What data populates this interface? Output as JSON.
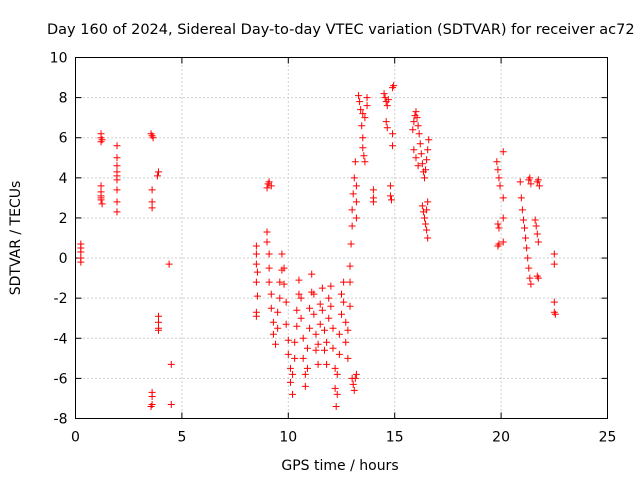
{
  "chart_data": {
    "type": "scatter",
    "title": "Day 160 of 2024, Sidereal Day-to-day VTEC variation (SDTVAR) for receiver ac72",
    "xlabel": "GPS time / hours",
    "ylabel": "SDTVAR / TECUs",
    "xlim": [
      0,
      25
    ],
    "ylim": [
      -8,
      10
    ],
    "xticks": [
      0,
      5,
      10,
      15,
      20,
      25
    ],
    "yticks": [
      -8,
      -6,
      -4,
      -2,
      0,
      2,
      4,
      6,
      8,
      10
    ],
    "grid": true,
    "series": [
      {
        "name": "SDTVAR",
        "color": "#ff0000",
        "marker": "plus",
        "points": [
          [
            0.25,
            0.7
          ],
          [
            0.25,
            0.5
          ],
          [
            0.25,
            0.3
          ],
          [
            0.25,
            0.0
          ],
          [
            0.25,
            -0.2
          ],
          [
            1.2,
            6.2
          ],
          [
            1.2,
            6.0
          ],
          [
            1.2,
            5.8
          ],
          [
            1.25,
            5.9
          ],
          [
            1.2,
            3.6
          ],
          [
            1.2,
            3.3
          ],
          [
            1.2,
            3.1
          ],
          [
            1.2,
            2.9
          ],
          [
            1.25,
            2.7
          ],
          [
            1.2,
            3.0
          ],
          [
            1.95,
            5.6
          ],
          [
            1.95,
            5.0
          ],
          [
            1.95,
            4.6
          ],
          [
            1.95,
            4.3
          ],
          [
            1.95,
            4.1
          ],
          [
            1.95,
            3.9
          ],
          [
            1.95,
            3.4
          ],
          [
            1.95,
            2.8
          ],
          [
            1.95,
            2.3
          ],
          [
            3.55,
            6.2
          ],
          [
            3.6,
            6.1
          ],
          [
            3.65,
            6.0
          ],
          [
            3.6,
            3.4
          ],
          [
            3.6,
            2.8
          ],
          [
            3.6,
            2.5
          ],
          [
            3.6,
            -6.7
          ],
          [
            3.6,
            -6.9
          ],
          [
            3.6,
            -7.3
          ],
          [
            3.55,
            -7.4
          ],
          [
            3.9,
            4.3
          ],
          [
            3.85,
            4.1
          ],
          [
            3.9,
            -2.9
          ],
          [
            3.9,
            -3.2
          ],
          [
            3.9,
            -3.5
          ],
          [
            3.9,
            -3.6
          ],
          [
            4.4,
            -0.3
          ],
          [
            4.5,
            -5.3
          ],
          [
            4.5,
            -7.3
          ],
          [
            8.5,
            0.6
          ],
          [
            8.5,
            0.2
          ],
          [
            8.5,
            -0.3
          ],
          [
            8.55,
            -0.7
          ],
          [
            8.5,
            -1.2
          ],
          [
            8.55,
            -1.9
          ],
          [
            8.5,
            -2.7
          ],
          [
            8.5,
            -2.9
          ],
          [
            9.0,
            3.5
          ],
          [
            9.05,
            3.7
          ],
          [
            9.1,
            3.8
          ],
          [
            9.2,
            3.6
          ],
          [
            9.0,
            1.3
          ],
          [
            9.0,
            0.8
          ],
          [
            9.1,
            0.2
          ],
          [
            9.1,
            -0.5
          ],
          [
            9.1,
            -1.2
          ],
          [
            9.2,
            -1.8
          ],
          [
            9.2,
            -2.5
          ],
          [
            9.3,
            -3.2
          ],
          [
            9.3,
            -3.8
          ],
          [
            9.4,
            -4.3
          ],
          [
            9.5,
            -3.5
          ],
          [
            9.5,
            -2.7
          ],
          [
            9.6,
            -2.0
          ],
          [
            9.6,
            -1.2
          ],
          [
            9.7,
            -0.6
          ],
          [
            9.7,
            0.2
          ],
          [
            9.8,
            -0.5
          ],
          [
            9.8,
            -1.3
          ],
          [
            9.9,
            -2.2
          ],
          [
            9.9,
            -3.3
          ],
          [
            10.0,
            -4.1
          ],
          [
            10.0,
            -4.8
          ],
          [
            10.1,
            -5.5
          ],
          [
            10.1,
            -6.2
          ],
          [
            10.2,
            -6.8
          ],
          [
            10.2,
            -5.8
          ],
          [
            10.3,
            -5.0
          ],
          [
            10.3,
            -4.2
          ],
          [
            10.4,
            -3.4
          ],
          [
            10.4,
            -2.6
          ],
          [
            10.5,
            -1.8
          ],
          [
            10.5,
            -1.1
          ],
          [
            10.6,
            -2.0
          ],
          [
            10.6,
            -3.0
          ],
          [
            10.7,
            -4.0
          ],
          [
            10.7,
            -5.0
          ],
          [
            10.8,
            -5.8
          ],
          [
            10.8,
            -6.4
          ],
          [
            10.9,
            -5.5
          ],
          [
            10.9,
            -4.5
          ],
          [
            11.0,
            -3.5
          ],
          [
            11.0,
            -2.5
          ],
          [
            11.1,
            -1.7
          ],
          [
            11.1,
            -0.8
          ],
          [
            11.2,
            -1.8
          ],
          [
            11.2,
            -2.8
          ],
          [
            11.3,
            -3.8
          ],
          [
            11.3,
            -4.6
          ],
          [
            11.4,
            -5.3
          ],
          [
            11.4,
            -4.3
          ],
          [
            11.5,
            -3.3
          ],
          [
            11.5,
            -2.3
          ],
          [
            11.6,
            -1.5
          ],
          [
            11.6,
            -2.6
          ],
          [
            11.7,
            -3.6
          ],
          [
            11.7,
            -4.6
          ],
          [
            11.8,
            -5.3
          ],
          [
            11.8,
            -4.2
          ],
          [
            11.9,
            -3.0
          ],
          [
            11.9,
            -2.0
          ],
          [
            12.0,
            -1.4
          ],
          [
            12.0,
            -2.4
          ],
          [
            12.1,
            -3.5
          ],
          [
            12.1,
            -4.5
          ],
          [
            12.2,
            -5.5
          ],
          [
            12.2,
            -6.5
          ],
          [
            12.25,
            -7.4
          ],
          [
            12.3,
            -6.8
          ],
          [
            12.3,
            -5.8
          ],
          [
            12.4,
            -4.8
          ],
          [
            12.4,
            -3.8
          ],
          [
            12.5,
            -2.8
          ],
          [
            12.5,
            -1.8
          ],
          [
            12.6,
            -1.2
          ],
          [
            12.6,
            -2.2
          ],
          [
            12.7,
            -3.2
          ],
          [
            12.7,
            -4.2
          ],
          [
            12.8,
            -5.0
          ],
          [
            12.8,
            -3.6
          ],
          [
            12.9,
            -2.4
          ],
          [
            12.9,
            -1.2
          ],
          [
            12.9,
            -0.4
          ],
          [
            12.95,
            0.7
          ],
          [
            13.0,
            1.6
          ],
          [
            13.0,
            2.4
          ],
          [
            13.05,
            3.2
          ],
          [
            13.1,
            4.0
          ],
          [
            13.15,
            4.8
          ],
          [
            13.2,
            3.6
          ],
          [
            13.2,
            2.8
          ],
          [
            13.2,
            2.0
          ],
          [
            13.0,
            -6.0
          ],
          [
            13.05,
            -6.3
          ],
          [
            13.1,
            -6.6
          ],
          [
            13.15,
            -6.0
          ],
          [
            13.2,
            -5.8
          ],
          [
            13.3,
            8.1
          ],
          [
            13.35,
            7.8
          ],
          [
            13.4,
            7.4
          ],
          [
            13.45,
            6.6
          ],
          [
            13.5,
            6.0
          ],
          [
            13.5,
            5.5
          ],
          [
            13.55,
            5.1
          ],
          [
            13.6,
            4.8
          ],
          [
            13.6,
            7.0
          ],
          [
            13.7,
            7.6
          ],
          [
            13.7,
            8.0
          ],
          [
            13.5,
            7.2
          ],
          [
            14.0,
            3.4
          ],
          [
            14.0,
            3.0
          ],
          [
            14.0,
            2.8
          ],
          [
            14.5,
            8.2
          ],
          [
            14.55,
            8.0
          ],
          [
            14.6,
            7.8
          ],
          [
            14.65,
            7.6
          ],
          [
            14.7,
            7.9
          ],
          [
            14.6,
            6.8
          ],
          [
            14.65,
            6.5
          ],
          [
            14.8,
            3.6
          ],
          [
            14.8,
            3.1
          ],
          [
            14.85,
            2.9
          ],
          [
            14.9,
            8.5
          ],
          [
            14.95,
            8.6
          ],
          [
            14.9,
            6.2
          ],
          [
            14.9,
            5.6
          ],
          [
            15.85,
            6.4
          ],
          [
            15.9,
            6.8
          ],
          [
            15.95,
            7.1
          ],
          [
            16.0,
            7.3
          ],
          [
            16.05,
            7.0
          ],
          [
            16.1,
            6.6
          ],
          [
            16.15,
            6.2
          ],
          [
            16.2,
            5.7
          ],
          [
            16.25,
            5.2
          ],
          [
            16.3,
            4.7
          ],
          [
            16.35,
            4.3
          ],
          [
            16.4,
            4.0
          ],
          [
            16.45,
            4.4
          ],
          [
            16.5,
            4.9
          ],
          [
            16.55,
            5.4
          ],
          [
            16.6,
            5.9
          ],
          [
            16.3,
            2.6
          ],
          [
            16.35,
            2.3
          ],
          [
            16.4,
            2.0
          ],
          [
            16.45,
            1.7
          ],
          [
            16.5,
            1.4
          ],
          [
            16.55,
            1.0
          ],
          [
            16.5,
            2.4
          ],
          [
            16.55,
            2.8
          ],
          [
            15.9,
            5.4
          ],
          [
            16.0,
            5.0
          ],
          [
            16.1,
            4.6
          ],
          [
            19.8,
            4.8
          ],
          [
            19.85,
            4.4
          ],
          [
            19.9,
            4.0
          ],
          [
            19.95,
            3.6
          ],
          [
            19.85,
            1.7
          ],
          [
            19.9,
            1.5
          ],
          [
            19.9,
            0.7
          ],
          [
            19.85,
            0.6
          ],
          [
            20.1,
            5.3
          ],
          [
            20.1,
            3.0
          ],
          [
            20.1,
            2.0
          ],
          [
            20.1,
            0.8
          ],
          [
            20.9,
            3.8
          ],
          [
            20.95,
            3.0
          ],
          [
            21.0,
            2.4
          ],
          [
            21.05,
            1.9
          ],
          [
            21.1,
            1.5
          ],
          [
            21.15,
            1.0
          ],
          [
            21.2,
            0.5
          ],
          [
            21.25,
            0.0
          ],
          [
            21.3,
            -0.5
          ],
          [
            21.35,
            -1.0
          ],
          [
            21.4,
            -1.3
          ],
          [
            21.3,
            3.9
          ],
          [
            21.35,
            4.0
          ],
          [
            21.4,
            3.7
          ],
          [
            21.6,
            1.9
          ],
          [
            21.65,
            1.6
          ],
          [
            21.7,
            1.2
          ],
          [
            21.75,
            0.8
          ],
          [
            21.7,
            3.8
          ],
          [
            21.75,
            3.9
          ],
          [
            21.8,
            3.6
          ],
          [
            21.7,
            -0.9
          ],
          [
            21.75,
            -1.0
          ],
          [
            22.5,
            0.2
          ],
          [
            22.5,
            -0.3
          ],
          [
            22.5,
            -2.2
          ],
          [
            22.5,
            -2.7
          ],
          [
            22.55,
            -2.8
          ]
        ]
      }
    ]
  }
}
